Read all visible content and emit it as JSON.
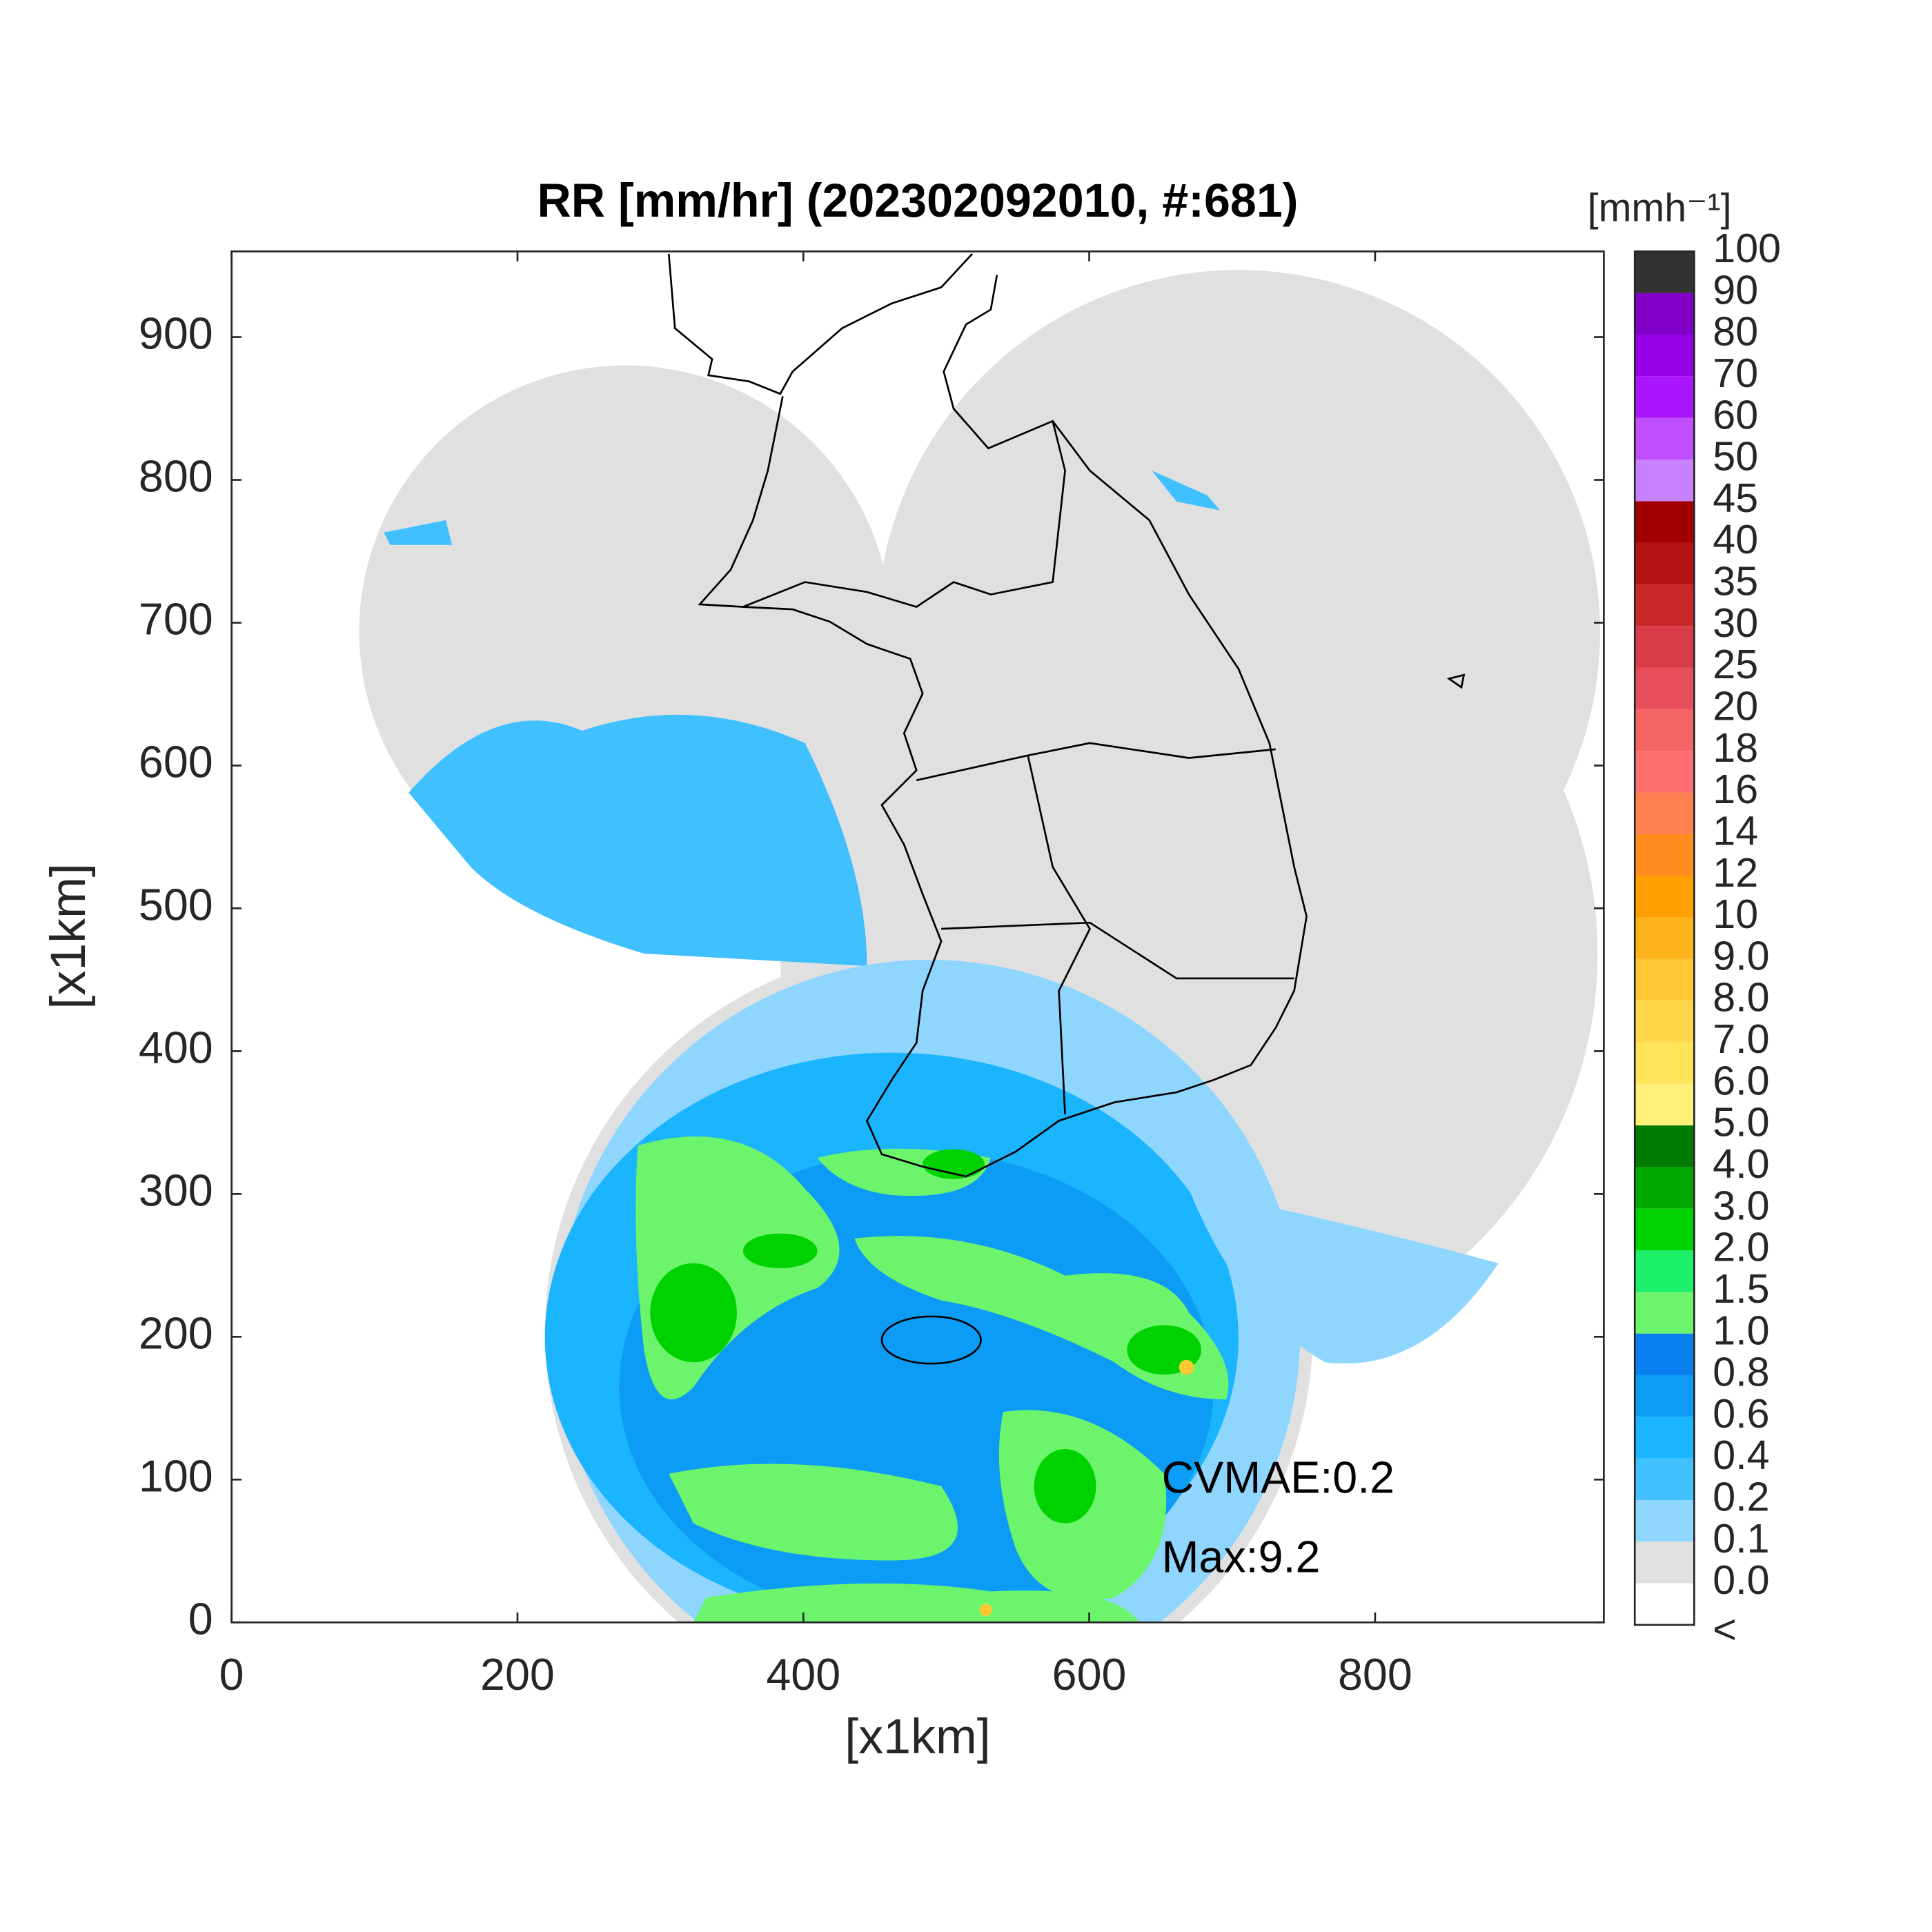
{
  "chart_data": {
    "type": "map",
    "title": "RR [mm/hr] (202302092010, #:681)",
    "x_label": "[x1km]",
    "y_label": "[x1km]",
    "xlim": [
      0,
      960
    ],
    "ylim": [
      0,
      960
    ],
    "xticks": [
      0,
      200,
      400,
      600,
      800
    ],
    "yticks": [
      0,
      100,
      200,
      300,
      400,
      500,
      600,
      700,
      800,
      900
    ],
    "annotations": [
      "CVMAE:0.2",
      "Max:9.2"
    ],
    "colorbar": {
      "label": "[mmh⁻¹]",
      "labels": [
        "<",
        "0.0",
        "0.1",
        "0.2",
        "0.4",
        "0.6",
        "0.8",
        "1.0",
        "1.5",
        "2.0",
        "3.0",
        "4.0",
        "5.0",
        "6.0",
        "7.0",
        "8.0",
        "9.0",
        "10",
        "12",
        "14",
        "16",
        "18",
        "20",
        "25",
        "30",
        "35",
        "40",
        "45",
        "50",
        "60",
        "70",
        "80",
        "90",
        "100"
      ],
      "colors": [
        "#ffffff",
        "#e0e0e0",
        "#8fd6ff",
        "#40c0ff",
        "#1ab4ff",
        "#0c9cf5",
        "#0a80f0",
        "#6cf56c",
        "#1ef06c",
        "#00d200",
        "#00a800",
        "#007a00",
        "#fff07a",
        "#ffe45a",
        "#ffd84a",
        "#ffc832",
        "#ffb41e",
        "#ffa000",
        "#ff8c1e",
        "#ff8050",
        "#ff6e6e",
        "#f46464",
        "#e64e5a",
        "#d83c46",
        "#c82828",
        "#b41414",
        "#a00000",
        "#c882ff",
        "#c050ff",
        "#aa14ff",
        "#9600e6",
        "#8000c8",
        "#323232"
      ]
    }
  }
}
